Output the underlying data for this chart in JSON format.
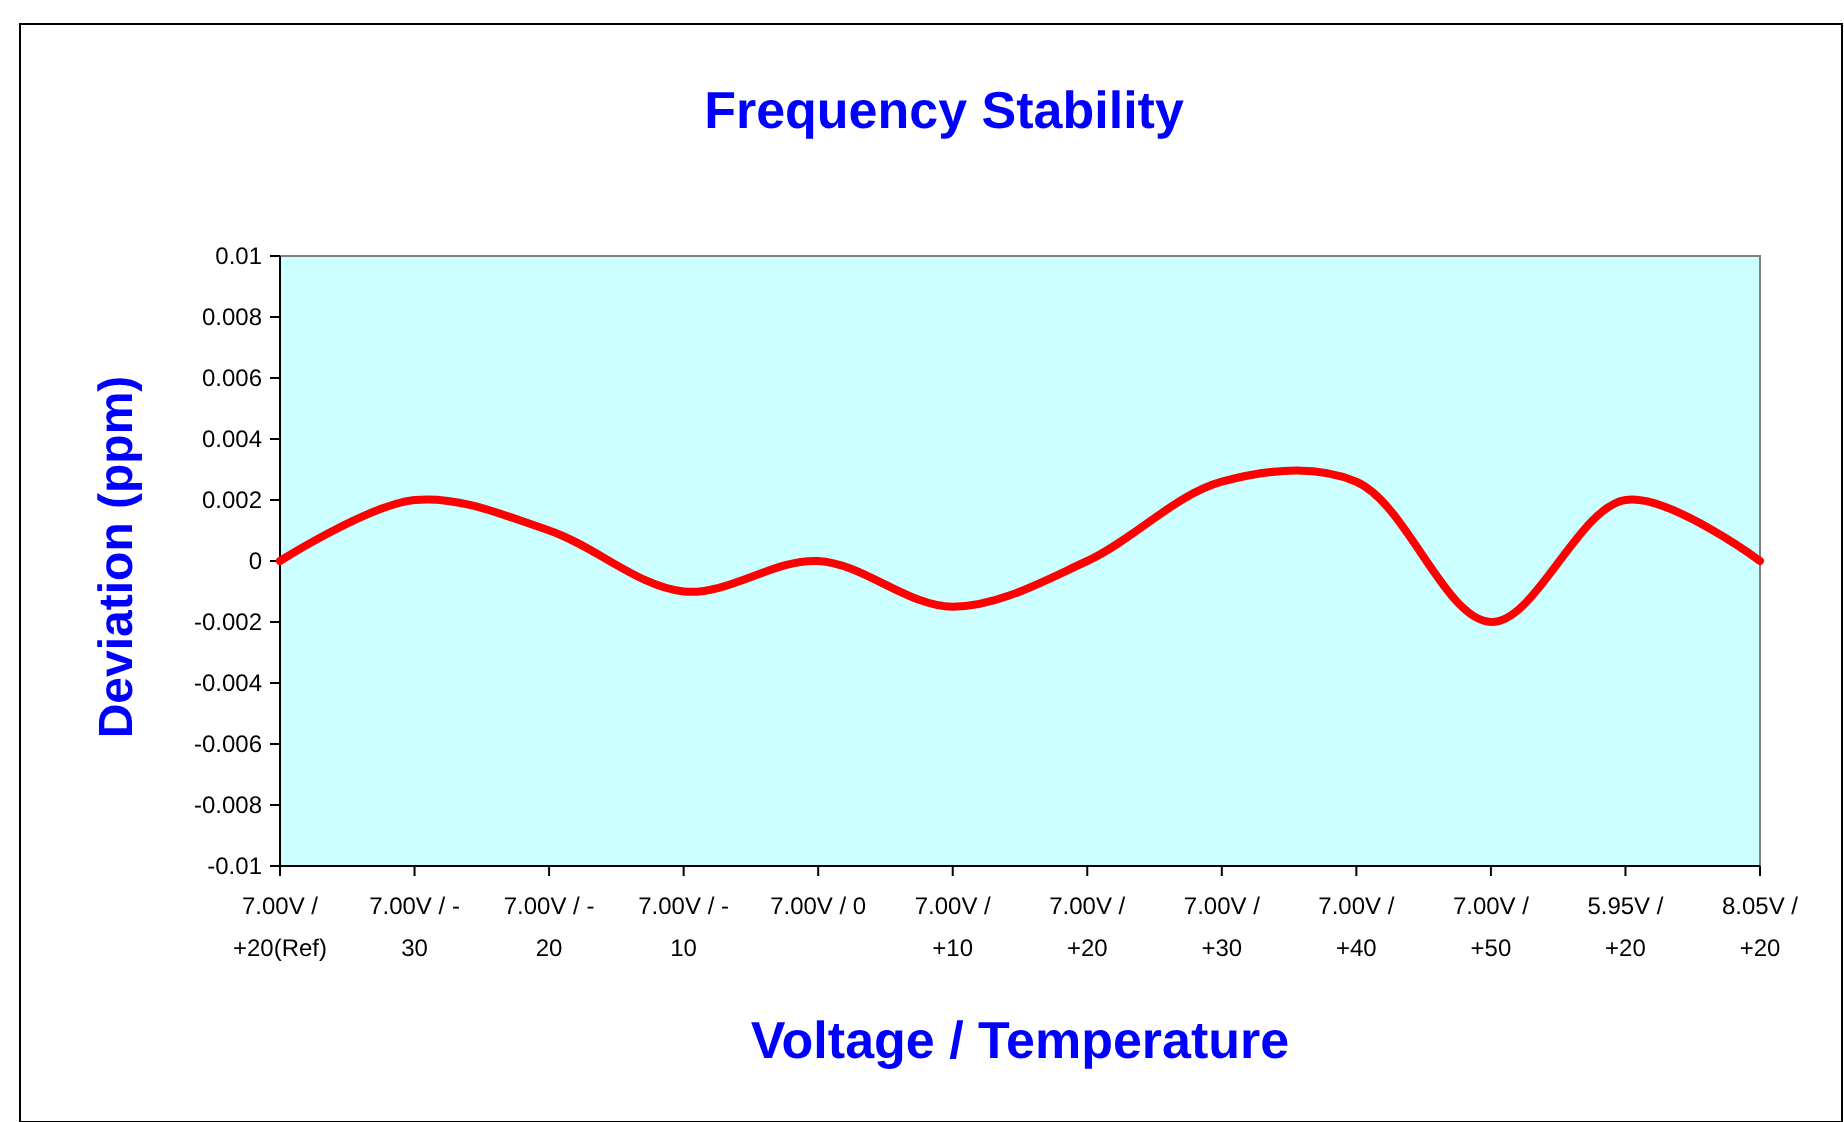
{
  "chart_data": {
    "type": "line",
    "title": "Frequency Stability",
    "xlabel": "Voltage / Temperature",
    "ylabel": "Deviation (ppm)",
    "categories": [
      "7.00V /\n+20(Ref)",
      "7.00V / -\n30",
      "7.00V / -\n20",
      "7.00V / -\n10",
      "7.00V / 0",
      "7.00V /\n+10",
      "7.00V /\n+20",
      "7.00V /\n+30",
      "7.00V /\n+40",
      "7.00V /\n+50",
      "5.95V /\n+20",
      "8.05V /\n+20"
    ],
    "series": [
      {
        "color": "#ff0000",
        "values": [
          0,
          0.002,
          0.001,
          -0.001,
          0,
          -0.0015,
          0,
          0.0026,
          0.0026,
          -0.002,
          0.002,
          0
        ]
      }
    ],
    "ylim": [
      -0.01,
      0.01
    ],
    "yticks": [
      -0.01,
      -0.008,
      -0.006,
      -0.004,
      -0.002,
      0,
      0.002,
      0.004,
      0.006,
      0.008,
      0.01
    ],
    "grid": false,
    "marker": "none",
    "line_style": "solid"
  }
}
